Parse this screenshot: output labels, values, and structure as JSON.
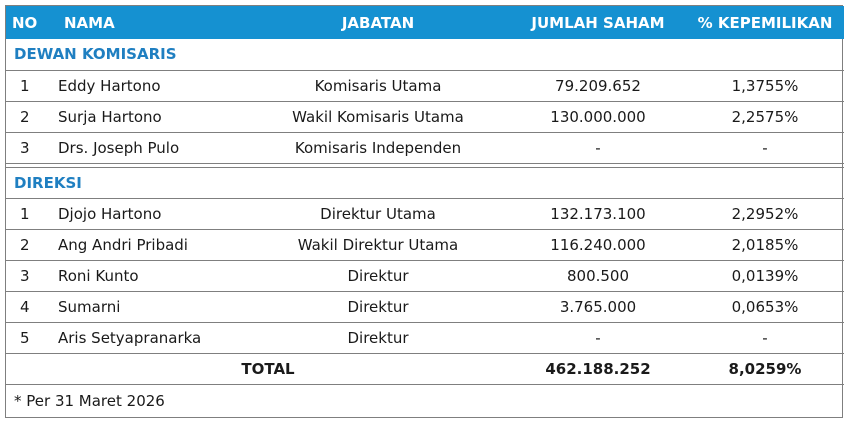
{
  "headers": {
    "no": "NO",
    "nama": "NAMA",
    "jabatan": "JABATAN",
    "jumlah_saham": "JUMLAH SAHAM",
    "kepemilikan": "% KEPEMILIKAN"
  },
  "dewan_komisaris": {
    "title": "DEWAN KOMISARIS",
    "rows": [
      {
        "no": "1",
        "nama": "Eddy Hartono",
        "jabatan": "Komisaris Utama",
        "saham": "79.209.652",
        "pct": "1,3755%"
      },
      {
        "no": "2",
        "nama": "Surja Hartono",
        "jabatan": "Wakil Komisaris Utama",
        "saham": "130.000.000",
        "pct": "2,2575%"
      },
      {
        "no": "3",
        "nama": "Drs. Joseph Pulo",
        "jabatan": "Komisaris Independen",
        "saham": "-",
        "pct": "-"
      }
    ]
  },
  "direksi": {
    "title": "DIREKSI",
    "rows": [
      {
        "no": "1",
        "nama": "Djojo Hartono",
        "jabatan": "Direktur Utama",
        "saham": "132.173.100",
        "pct": "2,2952%"
      },
      {
        "no": "2",
        "nama": "Ang Andri Pribadi",
        "jabatan": "Wakil Direktur Utama",
        "saham": "116.240.000",
        "pct": "2,0185%"
      },
      {
        "no": "3",
        "nama": "Roni Kunto",
        "jabatan": "Direktur",
        "saham": "800.500",
        "pct": "0,0139%"
      },
      {
        "no": "4",
        "nama": "Sumarni",
        "jabatan": "Direktur",
        "saham": "3.765.000",
        "pct": "0,0653%"
      },
      {
        "no": "5",
        "nama": "Aris Setyapranarka",
        "jabatan": "Direktur",
        "saham": "-",
        "pct": "-"
      }
    ]
  },
  "total": {
    "label": "TOTAL",
    "saham": "462.188.252",
    "pct": "8,0259%"
  },
  "footnote": "* Per 31 Maret 2026",
  "colors": {
    "header_bg": "#1591d1",
    "section_title": "#1f7fc1",
    "border": "#7f7f7f"
  }
}
